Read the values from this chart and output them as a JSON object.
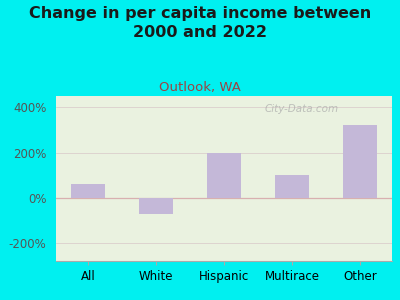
{
  "title": "Change in per capita income between\n2000 and 2022",
  "subtitle": "Outlook, WA",
  "categories": [
    "All",
    "White",
    "Hispanic",
    "Multirace",
    "Other"
  ],
  "values": [
    60,
    -70,
    200,
    100,
    320
  ],
  "bar_color": "#c4b8d8",
  "title_color": "#1a1a1a",
  "subtitle_color": "#9b4444",
  "background_outer": "#00f0f0",
  "background_plot": "#eaf2e0",
  "ytick_values": [
    -200,
    0,
    200,
    400
  ],
  "ylim": [
    -280,
    450
  ],
  "watermark": "City-Data.com",
  "title_fontsize": 11.5,
  "subtitle_fontsize": 9.5,
  "tick_fontsize": 8.5,
  "gridline_color": "#d8c8c8",
  "zero_line_color": "#d8b0b0"
}
